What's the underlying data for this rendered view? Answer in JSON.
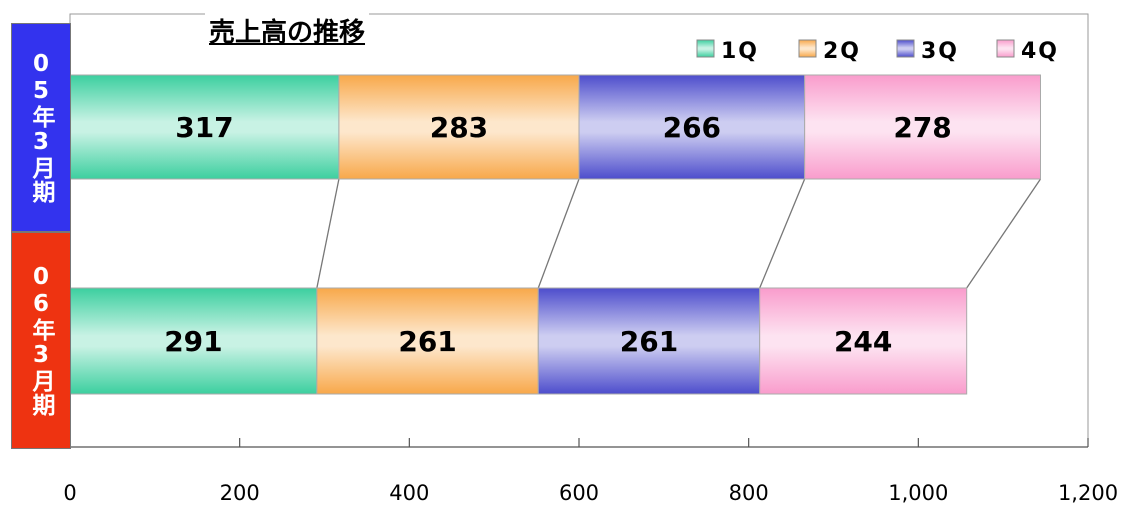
{
  "chart_data": {
    "type": "bar",
    "orientation": "horizontal",
    "stacked": true,
    "title": "売上高の推移",
    "categories": [
      "05年3月期",
      "06年3月期"
    ],
    "category_label_colors": [
      "#3333ee",
      "#ee3311"
    ],
    "series": [
      {
        "name": "1Q",
        "values": [
          317,
          291
        ],
        "color": "#3ccf9f"
      },
      {
        "name": "2Q",
        "values": [
          283,
          261
        ],
        "color": "#f8a84a"
      },
      {
        "name": "3Q",
        "values": [
          266,
          261
        ],
        "color": "#4d4dcc"
      },
      {
        "name": "4Q",
        "values": [
          278,
          244
        ],
        "color": "#f99ccc"
      }
    ],
    "data_labels": true,
    "xlim": [
      0,
      1200
    ],
    "x_ticks": [
      "0",
      "200",
      "400",
      "600",
      "800",
      "1,000",
      "1,200"
    ],
    "legend_position": "top-right",
    "series_connector_lines": true
  }
}
